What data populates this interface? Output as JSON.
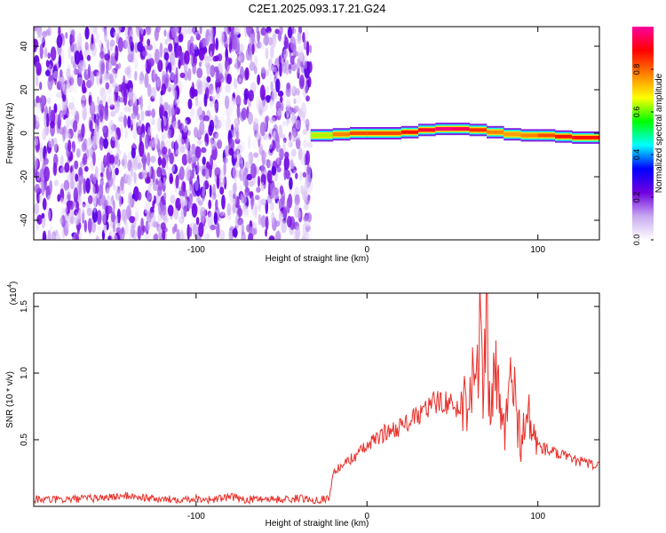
{
  "figure": {
    "title": "C2E1.2025.093.17.21.G24"
  },
  "chart_data": [
    {
      "type": "heatmap",
      "xlabel": "Height of straight line (km)",
      "ylabel": "Frequency (Hz)",
      "xlim": [
        -195,
        136
      ],
      "ylim": [
        -49,
        49
      ],
      "xticks": [
        -100,
        0,
        100
      ],
      "xtick_labels": [
        "-100",
        "0",
        "100"
      ],
      "yticks": [
        -40,
        -20,
        0,
        20,
        40
      ],
      "ytick_labels": [
        "-40",
        "-20",
        "0",
        "20",
        "40"
      ],
      "colorbar": {
        "label": "Normalized spectral amplitude",
        "range": [
          0,
          1
        ],
        "ticks": [
          0.0,
          0.2,
          0.4,
          0.6,
          0.8
        ],
        "tick_labels": [
          "0.0",
          "0.2",
          "0.4",
          "0.6",
          "0.8"
        ],
        "colors": [
          "#ffffff",
          "#c8a8f0",
          "#7000e0",
          "#0000ff",
          "#00ffff",
          "#00ff00",
          "#ffff00",
          "#ff8000",
          "#ff0000",
          "#ff00a0"
        ]
      },
      "noise_region": {
        "x_range": [
          -195,
          -33
        ],
        "level_range": [
          0.0,
          0.25
        ]
      },
      "signal_trace": {
        "x": [
          -33,
          -20,
          -10,
          0,
          10,
          20,
          30,
          40,
          50,
          60,
          70,
          80,
          90,
          100,
          110,
          120,
          136
        ],
        "freq_hz": [
          -1,
          -1,
          0,
          0,
          0,
          0,
          1,
          2,
          2,
          2,
          1,
          0,
          -1,
          -1,
          -1,
          -2,
          -2
        ],
        "amplitude": [
          0.5,
          0.75,
          0.8,
          0.85,
          0.8,
          0.85,
          0.9,
          0.95,
          1.0,
          0.9,
          0.8,
          0.75,
          0.75,
          0.8,
          0.85,
          0.9,
          0.85
        ]
      },
      "grid": false
    },
    {
      "type": "line",
      "xlabel": "Height of straight line (km)",
      "ylabel": "SNR (10 * v/v)",
      "y_multiplier_label": "(x10",
      "y_multiplier_exp": "4",
      "xlim": [
        -195,
        136
      ],
      "ylim": [
        0,
        1.6
      ],
      "xticks": [
        -100,
        0,
        100
      ],
      "xtick_labels": [
        "-100",
        "0",
        "100"
      ],
      "yticks": [
        0.5,
        1.0,
        1.5
      ],
      "ytick_labels": [
        "0.5",
        "1.0",
        "1.5"
      ],
      "series": [
        {
          "color": "#e8302a",
          "x": [
            -195,
            -180,
            -160,
            -140,
            -120,
            -100,
            -90,
            -80,
            -70,
            -60,
            -50,
            -40,
            -30,
            -22,
            -20,
            -10,
            0,
            10,
            20,
            30,
            40,
            45,
            50,
            55,
            60,
            62,
            64,
            66,
            68,
            70,
            72,
            75,
            80,
            85,
            90,
            95,
            100,
            110,
            120,
            136
          ],
          "y": [
            0.05,
            0.05,
            0.06,
            0.08,
            0.05,
            0.06,
            0.05,
            0.07,
            0.05,
            0.06,
            0.05,
            0.06,
            0.05,
            0.06,
            0.25,
            0.35,
            0.45,
            0.55,
            0.6,
            0.68,
            0.78,
            0.8,
            0.75,
            0.72,
            0.9,
            1.15,
            0.8,
            1.35,
            0.7,
            1.6,
            0.6,
            1.0,
            0.55,
            0.95,
            0.5,
            0.65,
            0.45,
            0.4,
            0.35,
            0.3
          ]
        }
      ],
      "grid": false
    }
  ]
}
